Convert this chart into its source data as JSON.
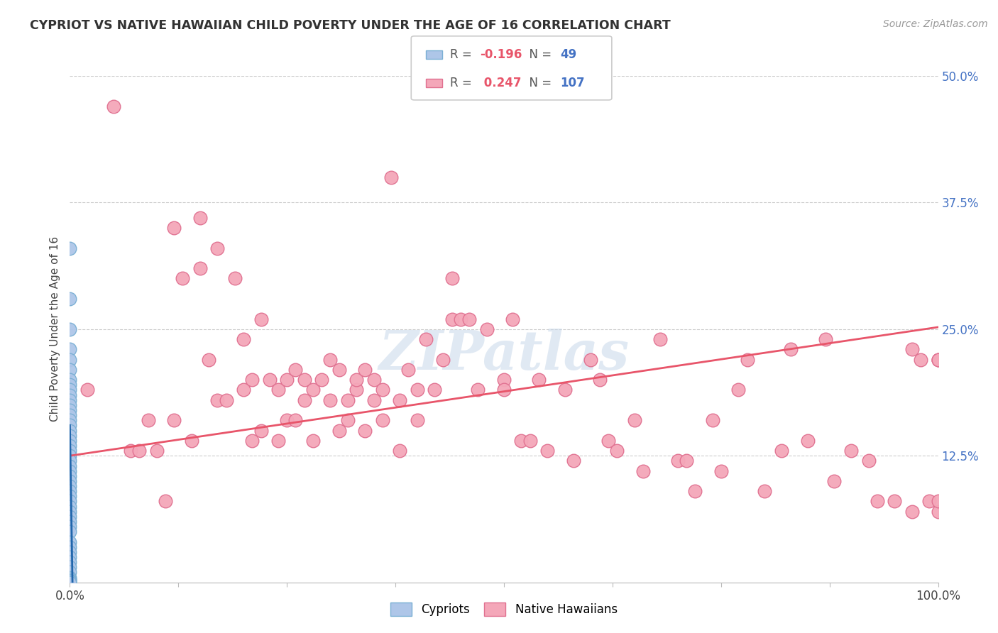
{
  "title": "CYPRIOT VS NATIVE HAWAIIAN CHILD POVERTY UNDER THE AGE OF 16 CORRELATION CHART",
  "source": "Source: ZipAtlas.com",
  "ylabel": "Child Poverty Under the Age of 16",
  "xlim": [
    0,
    1.0
  ],
  "ylim": [
    0,
    0.5
  ],
  "xticks": [
    0.0,
    0.125,
    0.25,
    0.375,
    0.5,
    0.625,
    0.75,
    0.875,
    1.0
  ],
  "xticklabels": [
    "0.0%",
    "",
    "",
    "",
    "",
    "",
    "",
    "",
    "100.0%"
  ],
  "yticks": [
    0.0,
    0.125,
    0.25,
    0.375,
    0.5
  ],
  "yticklabels": [
    "",
    "12.5%",
    "25.0%",
    "37.5%",
    "50.0%"
  ],
  "cypriot_color": "#aec6e8",
  "cypriot_edge_color": "#7aafd4",
  "native_hawaiian_color": "#f4a7b9",
  "native_hawaiian_edge_color": "#e07090",
  "trend_cypriot_color": "#2166ac",
  "trend_native_hawaiian_color": "#e8556a",
  "R_cypriot": -0.196,
  "N_cypriot": 49,
  "R_native": 0.247,
  "N_native": 107,
  "watermark": "ZIPatlas",
  "background_color": "#ffffff",
  "grid_color": "#cccccc",
  "cypriot_x": [
    0.0,
    0.0,
    0.0,
    0.0,
    0.0,
    0.0,
    0.0,
    0.0,
    0.0,
    0.0,
    0.0,
    0.0,
    0.0,
    0.0,
    0.0,
    0.0,
    0.0,
    0.0,
    0.0,
    0.0,
    0.0,
    0.0,
    0.0,
    0.0,
    0.0,
    0.0,
    0.0,
    0.0,
    0.0,
    0.0,
    0.0,
    0.0,
    0.0,
    0.0,
    0.0,
    0.0,
    0.0,
    0.0,
    0.0,
    0.0,
    0.0,
    0.0,
    0.0,
    0.0,
    0.0,
    0.0,
    0.0,
    0.0,
    0.0
  ],
  "cypriot_y": [
    0.33,
    0.28,
    0.25,
    0.23,
    0.22,
    0.21,
    0.2,
    0.195,
    0.19,
    0.185,
    0.18,
    0.175,
    0.17,
    0.165,
    0.16,
    0.155,
    0.15,
    0.145,
    0.14,
    0.135,
    0.13,
    0.125,
    0.12,
    0.115,
    0.11,
    0.105,
    0.1,
    0.095,
    0.09,
    0.085,
    0.08,
    0.075,
    0.07,
    0.065,
    0.06,
    0.055,
    0.05,
    0.04,
    0.035,
    0.03,
    0.025,
    0.02,
    0.015,
    0.01,
    0.005,
    0.003,
    0.002,
    0.001,
    0.0
  ],
  "native_x": [
    0.02,
    0.05,
    0.07,
    0.08,
    0.09,
    0.1,
    0.11,
    0.12,
    0.12,
    0.13,
    0.14,
    0.15,
    0.15,
    0.16,
    0.17,
    0.17,
    0.18,
    0.19,
    0.2,
    0.2,
    0.21,
    0.21,
    0.22,
    0.22,
    0.23,
    0.24,
    0.24,
    0.25,
    0.25,
    0.26,
    0.26,
    0.27,
    0.27,
    0.28,
    0.28,
    0.29,
    0.3,
    0.3,
    0.31,
    0.31,
    0.32,
    0.32,
    0.33,
    0.33,
    0.34,
    0.34,
    0.35,
    0.35,
    0.36,
    0.36,
    0.37,
    0.38,
    0.38,
    0.39,
    0.4,
    0.4,
    0.41,
    0.42,
    0.43,
    0.44,
    0.44,
    0.45,
    0.46,
    0.47,
    0.48,
    0.5,
    0.5,
    0.51,
    0.52,
    0.53,
    0.54,
    0.55,
    0.57,
    0.58,
    0.6,
    0.61,
    0.62,
    0.63,
    0.65,
    0.66,
    0.68,
    0.7,
    0.71,
    0.72,
    0.74,
    0.75,
    0.77,
    0.78,
    0.8,
    0.82,
    0.83,
    0.85,
    0.87,
    0.88,
    0.9,
    0.92,
    0.93,
    0.95,
    0.97,
    0.97,
    0.98,
    0.99,
    1.0,
    1.0,
    1.0,
    1.0,
    1.0
  ],
  "native_y": [
    0.19,
    0.47,
    0.13,
    0.13,
    0.16,
    0.13,
    0.08,
    0.35,
    0.16,
    0.3,
    0.14,
    0.36,
    0.31,
    0.22,
    0.18,
    0.33,
    0.18,
    0.3,
    0.19,
    0.24,
    0.14,
    0.2,
    0.15,
    0.26,
    0.2,
    0.14,
    0.19,
    0.2,
    0.16,
    0.16,
    0.21,
    0.18,
    0.2,
    0.14,
    0.19,
    0.2,
    0.18,
    0.22,
    0.15,
    0.21,
    0.18,
    0.16,
    0.19,
    0.2,
    0.15,
    0.21,
    0.18,
    0.2,
    0.16,
    0.19,
    0.4,
    0.13,
    0.18,
    0.21,
    0.19,
    0.16,
    0.24,
    0.19,
    0.22,
    0.3,
    0.26,
    0.26,
    0.26,
    0.19,
    0.25,
    0.2,
    0.19,
    0.26,
    0.14,
    0.14,
    0.2,
    0.13,
    0.19,
    0.12,
    0.22,
    0.2,
    0.14,
    0.13,
    0.16,
    0.11,
    0.24,
    0.12,
    0.12,
    0.09,
    0.16,
    0.11,
    0.19,
    0.22,
    0.09,
    0.13,
    0.23,
    0.14,
    0.24,
    0.1,
    0.13,
    0.12,
    0.08,
    0.08,
    0.23,
    0.07,
    0.22,
    0.08,
    0.22,
    0.22,
    0.07,
    0.08,
    0.22
  ],
  "cypriot_trend_x": [
    0.0,
    0.003
  ],
  "cypriot_trend_y_start": 0.155,
  "cypriot_trend_y_end": 0.0,
  "native_trend_x_start": 0.0,
  "native_trend_x_end": 1.0,
  "native_trend_y_start": 0.125,
  "native_trend_y_end": 0.252
}
